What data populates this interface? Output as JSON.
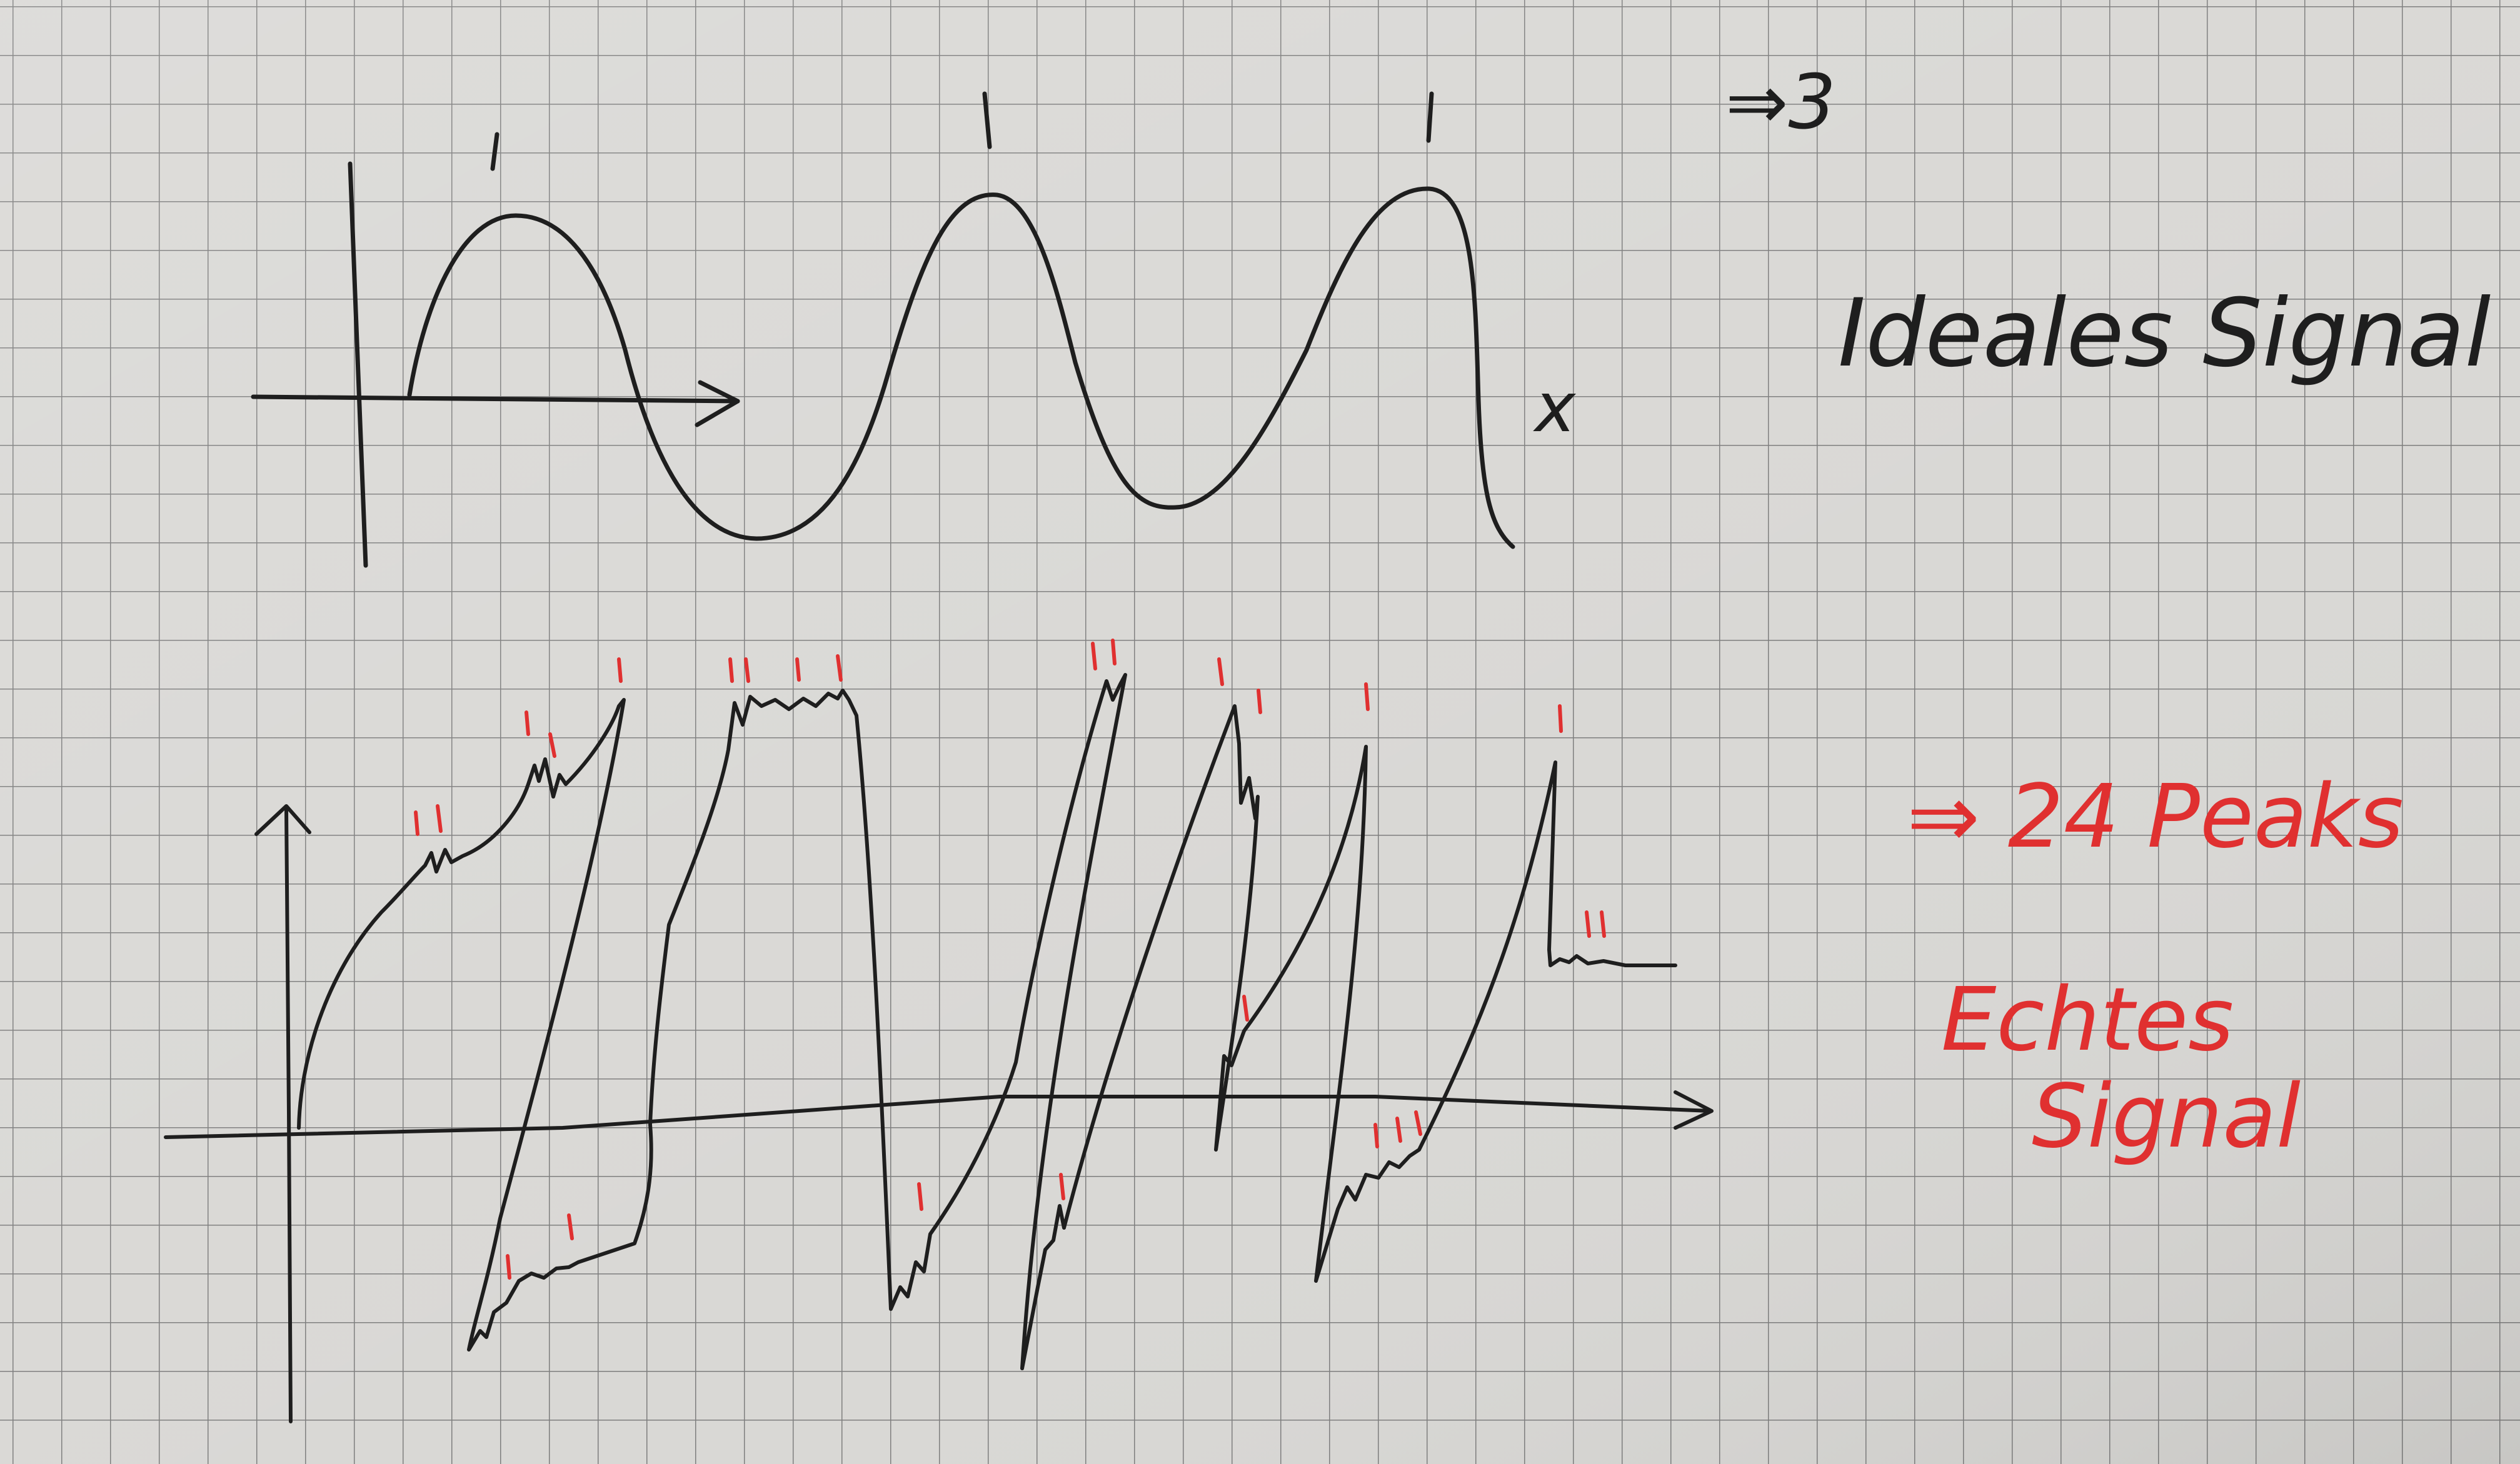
{
  "photo": {
    "paper_color": "#d9d8d5",
    "grid_color": "#7f7f7f",
    "pen_black": "#1e1e1e",
    "pen_red": "#e03030"
  },
  "ideal_sketch": {
    "axis_label": "x",
    "result": "⇒3",
    "caption": "Ideales Signal",
    "peak_marks": 3
  },
  "real_sketch": {
    "result": "⇒ 24 Peaks",
    "caption_line1": "Echtes",
    "caption_line2": "Signal",
    "peak_marks": 24
  }
}
